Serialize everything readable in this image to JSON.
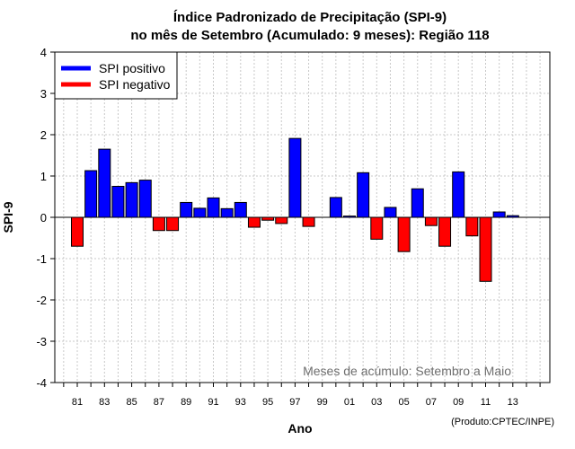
{
  "chart_data": {
    "type": "bar",
    "title_line1": "Índice Padronizado de Precipitação (SPI-9)",
    "title_line2": "no mês de Setembro (Acumulado: 9 meses): Região 118",
    "xlabel": "Ano",
    "ylabel": "SPI-9",
    "ylim": [
      -4,
      4
    ],
    "yticks": [
      "-4",
      "-3",
      "-2",
      "-1",
      "0",
      "1",
      "2",
      "3",
      "4"
    ],
    "years": [
      1981,
      1982,
      1983,
      1984,
      1985,
      1986,
      1987,
      1988,
      1989,
      1990,
      1991,
      1992,
      1993,
      1994,
      1995,
      1996,
      1997,
      1998,
      1999,
      2000,
      2001,
      2002,
      2003,
      2004,
      2005,
      2006,
      2007,
      2008,
      2009,
      2010,
      2011,
      2012,
      2013
    ],
    "values": [
      -0.7,
      1.13,
      1.65,
      0.75,
      0.84,
      0.9,
      -0.32,
      -0.32,
      0.36,
      0.22,
      0.47,
      0.21,
      0.36,
      -0.24,
      -0.07,
      -0.15,
      1.91,
      -0.22,
      0.0,
      0.48,
      0.03,
      1.08,
      -0.53,
      0.24,
      -0.83,
      0.69,
      -0.2,
      -0.7,
      1.1,
      -0.45,
      -1.55,
      0.13,
      0.04
    ],
    "xtick_labels": [
      "81",
      "83",
      "85",
      "87",
      "89",
      "91",
      "93",
      "95",
      "97",
      "99",
      "01",
      "03",
      "05",
      "07",
      "09",
      "11",
      "13"
    ],
    "legend": [
      {
        "label": "SPI positivo",
        "color": "#0000ff"
      },
      {
        "label": "SPI negativo",
        "color": "#ff0000"
      }
    ],
    "legend_position": "top-left",
    "grid": true,
    "annotation": "Meses de acúmulo: Setembro a Maio",
    "credit": "(Produto:CPTEC/INPE)"
  }
}
